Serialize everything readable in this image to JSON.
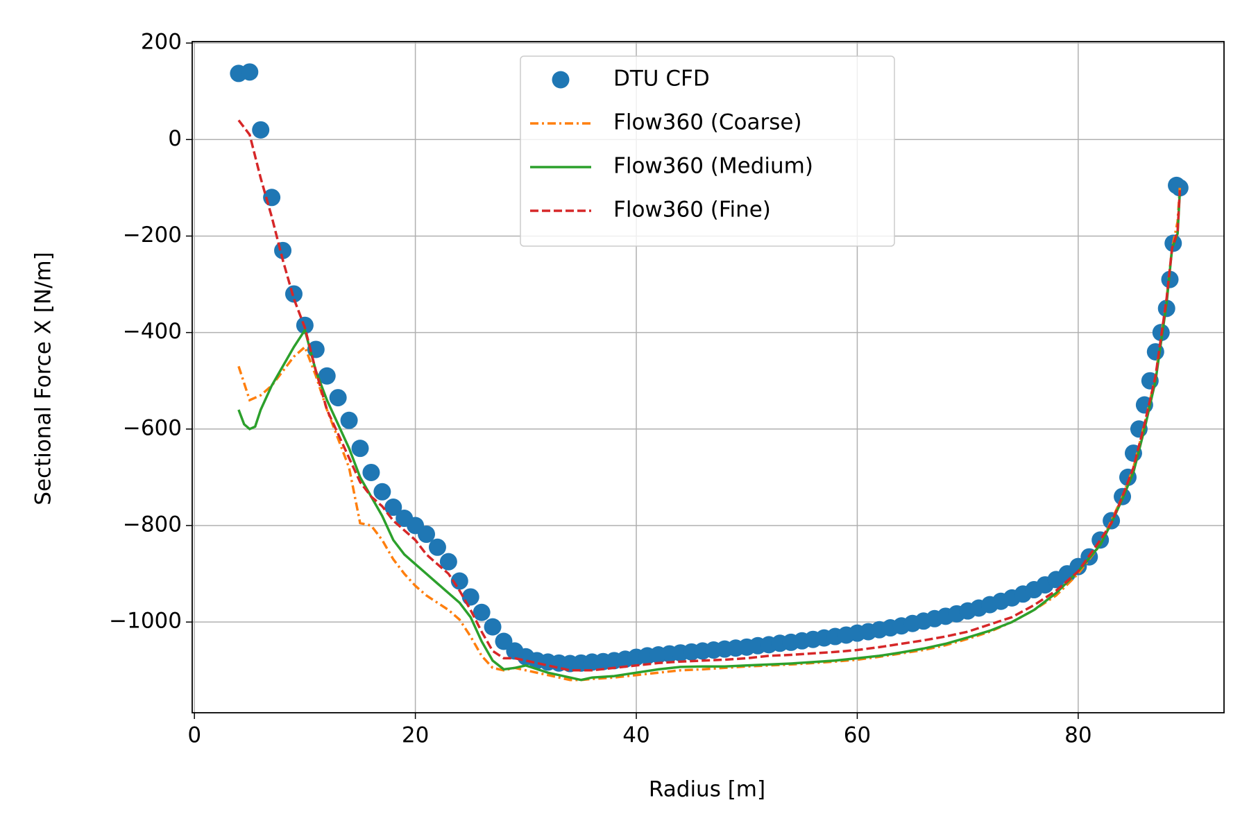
{
  "chart_data": {
    "type": "line",
    "xlabel": "Radius [m]",
    "ylabel": "Sectional Force X [N/m]",
    "xlim": [
      -0.2,
      93.2
    ],
    "ylim": [
      -1188,
      203
    ],
    "xticks": [
      0,
      20,
      40,
      60,
      80
    ],
    "yticks": [
      200,
      0,
      {
        "value": -200,
        "label": "−200"
      },
      {
        "value": -400,
        "label": "−400"
      },
      {
        "value": -600,
        "label": "−600"
      },
      {
        "value": -800,
        "label": "−800"
      },
      {
        "value": -1000,
        "label": "−1000"
      }
    ],
    "grid": true,
    "legend": "upper center",
    "series": [
      {
        "name": "DTU CFD",
        "type": "scatter",
        "color": "#1f77b4",
        "x": [
          4,
          5,
          6,
          7,
          8,
          9,
          10,
          11,
          12,
          13,
          14,
          15,
          16,
          17,
          18,
          19,
          20,
          21,
          22,
          23,
          24,
          25,
          26,
          27,
          28,
          29,
          30,
          31,
          32,
          33,
          34,
          35,
          36,
          37,
          38,
          39,
          40,
          41,
          42,
          43,
          44,
          45,
          46,
          47,
          48,
          49,
          50,
          51,
          52,
          53,
          54,
          55,
          56,
          57,
          58,
          59,
          60,
          61,
          62,
          63,
          64,
          65,
          66,
          67,
          68,
          69,
          70,
          71,
          72,
          73,
          74,
          75,
          76,
          77,
          78,
          79,
          80,
          81,
          82,
          83,
          84,
          84.5,
          85,
          85.5,
          86,
          86.5,
          87,
          87.5,
          88,
          88.3,
          88.6,
          88.9,
          89.2
        ],
        "values": [
          137,
          140,
          20,
          -120,
          -230,
          -320,
          -385,
          -435,
          -490,
          -535,
          -582,
          -640,
          -690,
          -730,
          -762,
          -785,
          -800,
          -818,
          -845,
          -875,
          -915,
          -948,
          -980,
          -1010,
          -1040,
          -1060,
          -1072,
          -1080,
          -1083,
          -1085,
          -1086,
          -1085,
          -1083,
          -1082,
          -1080,
          -1077,
          -1073,
          -1070,
          -1068,
          -1066,
          -1064,
          -1062,
          -1060,
          -1058,
          -1056,
          -1054,
          -1052,
          -1049,
          -1047,
          -1044,
          -1042,
          -1039,
          -1036,
          -1033,
          -1030,
          -1027,
          -1023,
          -1020,
          -1016,
          -1012,
          -1008,
          -1003,
          -998,
          -993,
          -988,
          -983,
          -977,
          -971,
          -964,
          -957,
          -950,
          -942,
          -933,
          -923,
          -912,
          -900,
          -885,
          -865,
          -830,
          -790,
          -740,
          -700,
          -650,
          -600,
          -550,
          -500,
          -440,
          -400,
          -350,
          -290,
          -215,
          -95,
          -100
        ]
      },
      {
        "name": "Flow360 (Coarse)",
        "type": "line",
        "dash": "dashdot",
        "color": "#ff7f0e",
        "x": [
          4,
          5,
          6,
          7,
          8,
          9,
          10,
          11,
          12,
          13,
          14,
          15,
          16,
          17,
          18,
          19,
          20,
          21,
          22,
          23,
          24,
          25,
          26,
          27,
          28,
          29,
          30,
          32,
          34,
          35,
          36,
          38,
          40,
          42,
          44,
          46,
          48,
          50,
          52,
          54,
          56,
          58,
          60,
          62,
          64,
          66,
          68,
          70,
          72,
          74,
          76,
          78,
          80,
          82,
          83,
          84,
          85,
          86,
          87,
          88,
          88.5,
          89,
          89.2
        ],
        "values": [
          -470,
          -540,
          -530,
          -510,
          -480,
          -450,
          -430,
          -490,
          -560,
          -620,
          -680,
          -795,
          -800,
          -830,
          -870,
          -900,
          -925,
          -945,
          -960,
          -975,
          -995,
          -1030,
          -1070,
          -1095,
          -1100,
          -1095,
          -1100,
          -1110,
          -1120,
          -1120,
          -1118,
          -1115,
          -1110,
          -1105,
          -1100,
          -1098,
          -1095,
          -1092,
          -1090,
          -1088,
          -1085,
          -1082,
          -1078,
          -1072,
          -1065,
          -1058,
          -1048,
          -1035,
          -1020,
          -1000,
          -975,
          -945,
          -900,
          -840,
          -790,
          -740,
          -680,
          -590,
          -490,
          -330,
          -225,
          -170,
          -100
        ]
      },
      {
        "name": "Flow360 (Medium)",
        "type": "line",
        "dash": "solid",
        "color": "#2ca02c",
        "x": [
          4,
          4.5,
          5,
          5.5,
          6,
          7,
          8,
          9,
          10,
          11,
          12,
          13,
          14,
          15,
          16,
          17,
          18,
          19,
          20,
          21,
          22,
          23,
          24,
          25,
          26,
          27,
          28,
          29,
          30,
          32,
          34,
          35,
          36,
          38,
          40,
          42,
          44,
          46,
          48,
          50,
          52,
          54,
          56,
          58,
          60,
          62,
          64,
          66,
          68,
          70,
          72,
          74,
          76,
          78,
          80,
          82,
          83,
          84,
          85,
          86,
          87,
          88,
          88.5,
          89,
          89.2
        ],
        "values": [
          -560,
          -590,
          -600,
          -595,
          -560,
          -510,
          -470,
          -430,
          -395,
          -480,
          -540,
          -590,
          -640,
          -700,
          -740,
          -780,
          -830,
          -860,
          -880,
          -900,
          -920,
          -940,
          -960,
          -990,
          -1040,
          -1080,
          -1098,
          -1095,
          -1090,
          -1105,
          -1115,
          -1120,
          -1115,
          -1112,
          -1105,
          -1098,
          -1093,
          -1092,
          -1092,
          -1090,
          -1088,
          -1086,
          -1083,
          -1080,
          -1075,
          -1070,
          -1063,
          -1055,
          -1045,
          -1032,
          -1018,
          -1000,
          -975,
          -940,
          -895,
          -840,
          -795,
          -745,
          -690,
          -600,
          -500,
          -340,
          -225,
          -195,
          -110
        ]
      },
      {
        "name": "Flow360 (Fine)",
        "type": "line",
        "dash": "dashed",
        "color": "#d62728",
        "x": [
          4,
          5,
          6,
          7,
          8,
          9,
          10,
          11,
          12,
          13,
          14,
          15,
          16,
          17,
          18,
          19,
          20,
          21,
          22,
          23,
          24,
          25,
          26,
          27,
          28,
          29,
          30,
          32,
          34,
          36,
          38,
          40,
          42,
          44,
          46,
          48,
          50,
          52,
          54,
          56,
          58,
          60,
          62,
          64,
          66,
          68,
          70,
          72,
          74,
          76,
          78,
          80,
          82,
          83,
          84,
          85,
          86,
          87,
          88,
          88.5,
          89,
          89.2
        ],
        "values": [
          40,
          10,
          -80,
          -160,
          -250,
          -330,
          -390,
          -480,
          -560,
          -610,
          -660,
          -710,
          -740,
          -760,
          -790,
          -810,
          -830,
          -860,
          -880,
          -900,
          -935,
          -975,
          -1020,
          -1060,
          -1075,
          -1075,
          -1080,
          -1090,
          -1100,
          -1100,
          -1095,
          -1090,
          -1085,
          -1082,
          -1080,
          -1078,
          -1075,
          -1070,
          -1068,
          -1065,
          -1062,
          -1058,
          -1052,
          -1045,
          -1038,
          -1030,
          -1020,
          -1005,
          -990,
          -965,
          -935,
          -895,
          -830,
          -795,
          -740,
          -680,
          -590,
          -490,
          -330,
          -225,
          -190,
          -105
        ]
      }
    ]
  }
}
